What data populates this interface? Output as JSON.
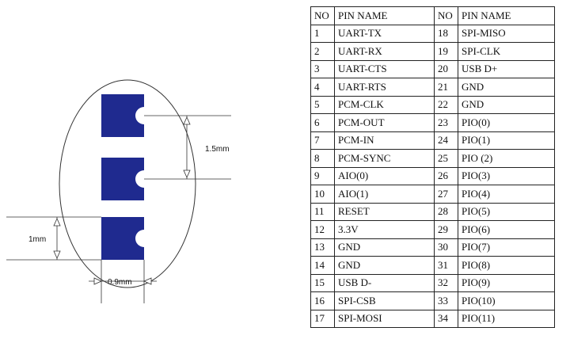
{
  "diagram": {
    "pad_count": 3,
    "pad_color": "#1f2a8f",
    "dimensions": {
      "pitch": "1.5mm",
      "pad_height": "1mm",
      "pad_width": "0.9mm"
    }
  },
  "table": {
    "headers": [
      "NO",
      "PIN NAME",
      "NO",
      "PIN NAME"
    ],
    "rows": [
      [
        "1",
        "UART-TX",
        "18",
        "SPI-MISO"
      ],
      [
        "2",
        "UART-RX",
        "19",
        "SPI-CLK"
      ],
      [
        "3",
        "UART-CTS",
        "20",
        "USB D+"
      ],
      [
        "4",
        "UART-RTS",
        "21",
        "GND"
      ],
      [
        "5",
        "PCM-CLK",
        "22",
        "GND"
      ],
      [
        "6",
        "PCM-OUT",
        "23",
        "PIO(0)"
      ],
      [
        "7",
        "PCM-IN",
        "24",
        "PIO(1)"
      ],
      [
        "8",
        "PCM-SYNC",
        "25",
        "PIO (2)"
      ],
      [
        "9",
        "AIO(0)",
        "26",
        "PIO(3)"
      ],
      [
        "10",
        "AIO(1)",
        "27",
        "PIO(4)"
      ],
      [
        "11",
        "RESET",
        "28",
        "PIO(5)"
      ],
      [
        "12",
        "3.3V",
        "29",
        "PIO(6)"
      ],
      [
        "13",
        "GND",
        "30",
        "PIO(7)"
      ],
      [
        "14",
        "GND",
        "31",
        "PIO(8)"
      ],
      [
        "15",
        "USB D-",
        "32",
        "PIO(9)"
      ],
      [
        "16",
        "SPI-CSB",
        "33",
        "PIO(10)"
      ],
      [
        "17",
        "SPI-MOSI",
        "34",
        "PIO(11)"
      ]
    ]
  }
}
